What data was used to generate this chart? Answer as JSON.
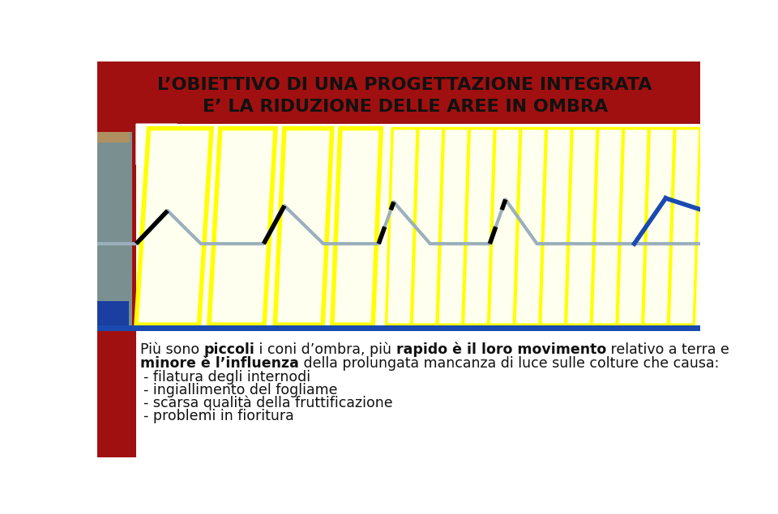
{
  "title_line1": "L’OBIETTIVO DI UNA PROGETTAZIONE INTEGRATA",
  "title_line2": "E’ LA RIDUZIONE DELLE AREE IN OMBRA",
  "bg_color": "#ffffff",
  "red_color": "#a01010",
  "yellow_color": "#ffff00",
  "light_yellow_fill": "#fffff0",
  "blue_dark": "#1a3a9a",
  "blue_line": "#1a4ab0",
  "gray_line": "#9ab0bc",
  "left_gray_panel": "#7a9090",
  "left_blue_box": "#1a3fa0",
  "left_tan": "#b09060",
  "bullets": [
    "- filatura degli internodi",
    "- ingiallimento del fogliame",
    "- scarsa qualità della fruttificazione",
    "- problemi in fioritura"
  ]
}
